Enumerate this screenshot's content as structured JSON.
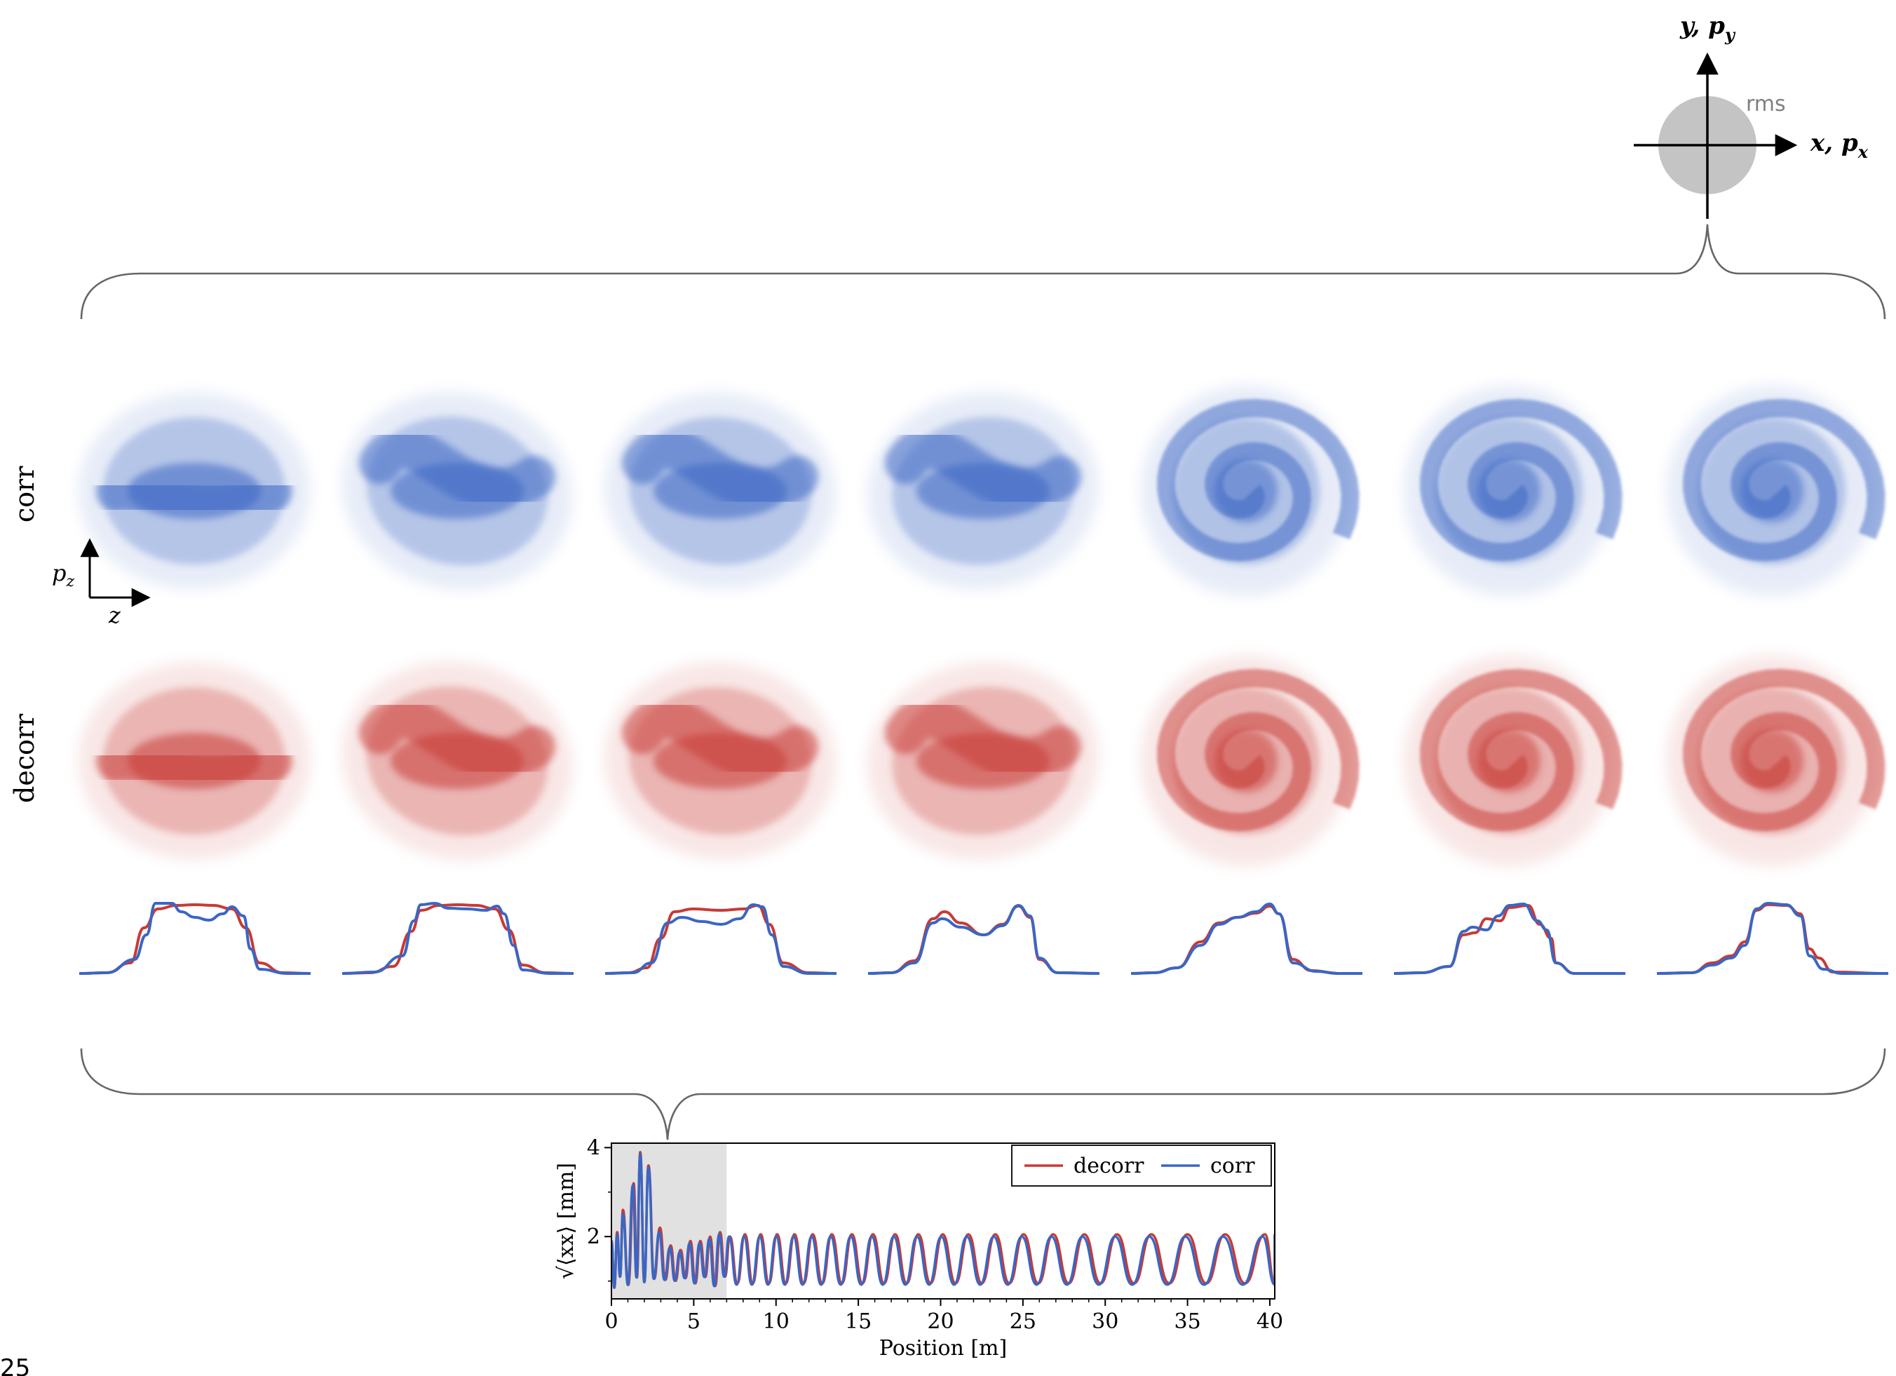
{
  "rms_inset": {
    "vertical_axis_label": "y, p",
    "vertical_axis_sub": "y",
    "horizontal_axis_label": "x, p",
    "horizontal_axis_sub": "x",
    "circle_label": "rms"
  },
  "row_labels": {
    "top": "corr",
    "bottom": "decorr"
  },
  "phase_axes": {
    "vertical": "p",
    "vertical_sub": "z",
    "horizontal": "z"
  },
  "colors": {
    "corr": "#3a66c4",
    "decorr": "#c83a36",
    "shade": "#e1e1e1",
    "brace": "#666666"
  },
  "page_number": "25",
  "panel_count": 7,
  "profiles": [
    {
      "decorr": [
        [
          0,
          0
        ],
        [
          0.12,
          0.01
        ],
        [
          0.22,
          0.15
        ],
        [
          0.28,
          0.65
        ],
        [
          0.34,
          0.92
        ],
        [
          0.42,
          0.97
        ],
        [
          0.5,
          0.98
        ],
        [
          0.58,
          0.97
        ],
        [
          0.66,
          0.92
        ],
        [
          0.72,
          0.65
        ],
        [
          0.78,
          0.15
        ],
        [
          0.88,
          0.01
        ],
        [
          1,
          0
        ]
      ],
      "corr": [
        [
          0,
          0
        ],
        [
          0.12,
          0.01
        ],
        [
          0.24,
          0.2
        ],
        [
          0.29,
          0.55
        ],
        [
          0.33,
          1.0
        ],
        [
          0.4,
          1.0
        ],
        [
          0.44,
          0.88
        ],
        [
          0.5,
          0.8
        ],
        [
          0.56,
          0.76
        ],
        [
          0.62,
          0.85
        ],
        [
          0.66,
          0.95
        ],
        [
          0.71,
          0.82
        ],
        [
          0.74,
          0.35
        ],
        [
          0.78,
          0.06
        ],
        [
          0.9,
          0
        ],
        [
          1,
          0
        ]
      ]
    },
    {
      "decorr": [
        [
          0,
          0
        ],
        [
          0.12,
          0.01
        ],
        [
          0.22,
          0.1
        ],
        [
          0.3,
          0.6
        ],
        [
          0.34,
          0.9
        ],
        [
          0.42,
          0.97
        ],
        [
          0.5,
          0.98
        ],
        [
          0.58,
          0.97
        ],
        [
          0.66,
          0.92
        ],
        [
          0.72,
          0.62
        ],
        [
          0.78,
          0.12
        ],
        [
          0.88,
          0.01
        ],
        [
          1,
          0
        ]
      ],
      "corr": [
        [
          0,
          0
        ],
        [
          0.14,
          0.02
        ],
        [
          0.26,
          0.25
        ],
        [
          0.31,
          0.75
        ],
        [
          0.34,
          0.98
        ],
        [
          0.4,
          1.0
        ],
        [
          0.46,
          0.93
        ],
        [
          0.54,
          0.92
        ],
        [
          0.62,
          0.9
        ],
        [
          0.67,
          0.96
        ],
        [
          0.7,
          0.85
        ],
        [
          0.74,
          0.4
        ],
        [
          0.78,
          0.05
        ],
        [
          0.9,
          0
        ],
        [
          1,
          0
        ]
      ]
    },
    {
      "decorr": [
        [
          0,
          0
        ],
        [
          0.1,
          0.01
        ],
        [
          0.18,
          0.08
        ],
        [
          0.24,
          0.5
        ],
        [
          0.3,
          0.88
        ],
        [
          0.38,
          0.92
        ],
        [
          0.5,
          0.9
        ],
        [
          0.6,
          0.92
        ],
        [
          0.66,
          0.97
        ],
        [
          0.71,
          0.7
        ],
        [
          0.77,
          0.15
        ],
        [
          0.88,
          0.01
        ],
        [
          1,
          0
        ]
      ],
      "corr": [
        [
          0,
          0
        ],
        [
          0.12,
          0.01
        ],
        [
          0.2,
          0.15
        ],
        [
          0.27,
          0.72
        ],
        [
          0.33,
          0.8
        ],
        [
          0.42,
          0.74
        ],
        [
          0.5,
          0.7
        ],
        [
          0.58,
          0.78
        ],
        [
          0.64,
          0.98
        ],
        [
          0.68,
          0.95
        ],
        [
          0.72,
          0.55
        ],
        [
          0.77,
          0.1
        ],
        [
          0.88,
          0
        ],
        [
          1,
          0
        ]
      ]
    },
    {
      "decorr": [
        [
          0,
          0
        ],
        [
          0.1,
          0.01
        ],
        [
          0.2,
          0.18
        ],
        [
          0.28,
          0.78
        ],
        [
          0.33,
          0.88
        ],
        [
          0.4,
          0.72
        ],
        [
          0.5,
          0.55
        ],
        [
          0.58,
          0.7
        ],
        [
          0.65,
          0.96
        ],
        [
          0.7,
          0.8
        ],
        [
          0.74,
          0.2
        ],
        [
          0.82,
          0.01
        ],
        [
          1,
          0
        ]
      ],
      "corr": [
        [
          0,
          0
        ],
        [
          0.1,
          0.01
        ],
        [
          0.2,
          0.15
        ],
        [
          0.28,
          0.72
        ],
        [
          0.32,
          0.78
        ],
        [
          0.4,
          0.66
        ],
        [
          0.5,
          0.55
        ],
        [
          0.58,
          0.68
        ],
        [
          0.65,
          0.97
        ],
        [
          0.7,
          0.82
        ],
        [
          0.74,
          0.22
        ],
        [
          0.82,
          0.01
        ],
        [
          1,
          0
        ]
      ]
    },
    {
      "decorr": [
        [
          0,
          0
        ],
        [
          0.1,
          0.01
        ],
        [
          0.2,
          0.08
        ],
        [
          0.3,
          0.45
        ],
        [
          0.38,
          0.72
        ],
        [
          0.46,
          0.8
        ],
        [
          0.54,
          0.86
        ],
        [
          0.6,
          0.96
        ],
        [
          0.64,
          0.85
        ],
        [
          0.7,
          0.2
        ],
        [
          0.78,
          0.04
        ],
        [
          0.9,
          0
        ],
        [
          1,
          0
        ]
      ],
      "corr": [
        [
          0,
          0
        ],
        [
          0.1,
          0.01
        ],
        [
          0.2,
          0.08
        ],
        [
          0.3,
          0.4
        ],
        [
          0.38,
          0.7
        ],
        [
          0.46,
          0.8
        ],
        [
          0.54,
          0.88
        ],
        [
          0.6,
          0.99
        ],
        [
          0.64,
          0.85
        ],
        [
          0.7,
          0.15
        ],
        [
          0.8,
          0.03
        ],
        [
          0.9,
          0
        ],
        [
          1,
          0
        ]
      ]
    },
    {
      "decorr": [
        [
          0,
          0
        ],
        [
          0.12,
          0.01
        ],
        [
          0.24,
          0.1
        ],
        [
          0.3,
          0.55
        ],
        [
          0.35,
          0.58
        ],
        [
          0.4,
          0.78
        ],
        [
          0.46,
          0.75
        ],
        [
          0.5,
          0.94
        ],
        [
          0.58,
          0.97
        ],
        [
          0.63,
          0.7
        ],
        [
          0.68,
          0.5
        ],
        [
          0.7,
          0.15
        ],
        [
          0.78,
          0
        ],
        [
          1,
          0
        ]
      ],
      "corr": [
        [
          0,
          0
        ],
        [
          0.12,
          0.01
        ],
        [
          0.24,
          0.1
        ],
        [
          0.3,
          0.6
        ],
        [
          0.34,
          0.66
        ],
        [
          0.4,
          0.62
        ],
        [
          0.45,
          0.82
        ],
        [
          0.5,
          0.97
        ],
        [
          0.56,
          0.99
        ],
        [
          0.62,
          0.75
        ],
        [
          0.66,
          0.62
        ],
        [
          0.7,
          0.15
        ],
        [
          0.78,
          0
        ],
        [
          1,
          0
        ]
      ]
    },
    {
      "decorr": [
        [
          0,
          0
        ],
        [
          0.15,
          0.01
        ],
        [
          0.24,
          0.15
        ],
        [
          0.32,
          0.25
        ],
        [
          0.38,
          0.45
        ],
        [
          0.43,
          0.9
        ],
        [
          0.48,
          0.98
        ],
        [
          0.56,
          0.97
        ],
        [
          0.62,
          0.85
        ],
        [
          0.66,
          0.35
        ],
        [
          0.7,
          0.22
        ],
        [
          0.76,
          0.02
        ],
        [
          1,
          0
        ]
      ],
      "corr": [
        [
          0,
          0
        ],
        [
          0.15,
          0.01
        ],
        [
          0.24,
          0.12
        ],
        [
          0.32,
          0.22
        ],
        [
          0.38,
          0.4
        ],
        [
          0.43,
          0.92
        ],
        [
          0.48,
          1.0
        ],
        [
          0.56,
          0.98
        ],
        [
          0.62,
          0.82
        ],
        [
          0.66,
          0.25
        ],
        [
          0.72,
          0.06
        ],
        [
          0.8,
          0
        ],
        [
          1,
          0
        ]
      ]
    }
  ],
  "chart_data": {
    "type": "line",
    "xlabel": "Position [m]",
    "ylabel": "√⟨xx⟩ [mm]",
    "xlim": [
      0,
      40.3
    ],
    "ylim": [
      0.6,
      4.1
    ],
    "xticks": [
      0,
      5,
      10,
      15,
      20,
      25,
      30,
      35,
      40
    ],
    "yticks": [
      2,
      4
    ],
    "grid": false,
    "legend_position": "top-right",
    "shaded_region": [
      0,
      7
    ],
    "series": [
      {
        "name": "decorr",
        "color": "#c83a36",
        "peaks": [
          [
            0.35,
            2.1
          ],
          [
            0.7,
            2.6
          ],
          [
            1.35,
            3.2
          ],
          [
            1.75,
            3.9
          ],
          [
            2.25,
            3.6
          ],
          [
            2.95,
            2.2
          ],
          [
            3.6,
            1.8
          ],
          [
            4.2,
            1.7
          ],
          [
            4.8,
            1.9
          ],
          [
            5.4,
            1.9
          ],
          [
            6.0,
            2.0
          ],
          [
            6.6,
            2.1
          ],
          [
            7.2,
            2.0
          ]
        ],
        "period": 0.52,
        "growth": 0.012,
        "high": 2.05,
        "low": 0.95
      },
      {
        "name": "corr",
        "color": "#3a66c4",
        "peaks": [
          [
            0.35,
            2.05
          ],
          [
            0.7,
            2.5
          ],
          [
            1.3,
            3.15
          ],
          [
            1.75,
            3.85
          ],
          [
            2.25,
            3.55
          ],
          [
            2.9,
            2.1
          ],
          [
            3.55,
            1.75
          ],
          [
            4.15,
            1.65
          ],
          [
            4.75,
            1.85
          ],
          [
            5.35,
            1.85
          ],
          [
            5.95,
            1.95
          ],
          [
            6.55,
            2.05
          ],
          [
            7.15,
            2.0
          ]
        ],
        "period": 0.52,
        "growth": 0.012,
        "high": 2.0,
        "low": 0.92
      }
    ]
  }
}
